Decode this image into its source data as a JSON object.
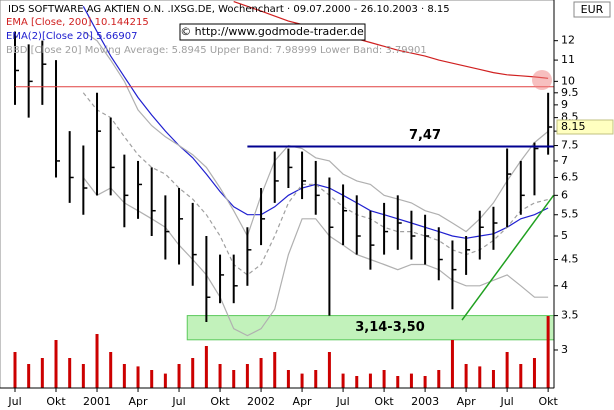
{
  "chart_data": {
    "type": "stock",
    "title": "IDS SOFTWARE AG AKTIEN O.N. .IXSG.DE, Wochenchart · 09.07.2000 - 26.10.2003 · 8.15",
    "copyright": "© http://www.godmode-trader.de",
    "currency": "EUR",
    "log_scale": true,
    "ylim": [
      2.53,
      14.4
    ],
    "yticks": [
      3,
      3.5,
      4,
      4.5,
      5,
      5.5,
      6,
      6.5,
      7,
      7.5,
      8,
      8.5,
      9,
      9.5,
      10,
      11,
      12
    ],
    "last_price": {
      "value": 8.15,
      "label": "8.15"
    },
    "categories": [
      "Jul",
      null,
      null,
      "Okt",
      null,
      null,
      "2001",
      null,
      null,
      "Apr",
      null,
      null,
      "Jul",
      null,
      null,
      "Okt",
      null,
      null,
      "2002",
      null,
      null,
      "Apr",
      null,
      null,
      "Jul",
      null,
      null,
      "Okt",
      null,
      null,
      "2003",
      null,
      null,
      "Apr",
      null,
      null,
      "Jul",
      null,
      null,
      "Okt"
    ],
    "high": [
      12.5,
      11.8,
      12.0,
      11.0,
      8.0,
      7.5,
      9.5,
      8.5,
      7.2,
      7.0,
      6.8,
      6.0,
      6.2,
      5.8,
      5.0,
      4.6,
      4.6,
      5.2,
      6.2,
      7.3,
      7.4,
      7.3,
      7.0,
      6.5,
      6.3,
      6.0,
      5.6,
      5.8,
      6.0,
      5.6,
      5.5,
      5.2,
      4.9,
      5.0,
      5.6,
      5.7,
      7.4,
      7.0,
      7.6,
      9.5
    ],
    "low": [
      9.0,
      8.5,
      9.0,
      6.5,
      5.8,
      5.5,
      6.0,
      6.0,
      5.2,
      5.4,
      5.0,
      4.5,
      4.4,
      4.0,
      3.4,
      3.7,
      3.7,
      4.0,
      4.8,
      5.8,
      6.2,
      5.9,
      5.5,
      3.5,
      4.8,
      4.6,
      4.3,
      4.6,
      4.7,
      4.5,
      4.4,
      4.1,
      3.6,
      4.2,
      4.5,
      4.7,
      5.2,
      5.5,
      6.0,
      7.2
    ],
    "close": [
      10.5,
      10.0,
      10.8,
      7.0,
      6.5,
      6.2,
      8.0,
      6.8,
      6.0,
      6.3,
      5.6,
      5.1,
      5.4,
      4.6,
      3.8,
      4.2,
      4.0,
      4.7,
      5.4,
      6.4,
      6.8,
      6.4,
      6.0,
      5.2,
      5.6,
      5.0,
      4.8,
      5.1,
      5.3,
      5.0,
      5.0,
      4.5,
      4.3,
      4.7,
      5.2,
      5.3,
      6.6,
      6.0,
      7.4,
      8.15
    ],
    "volume": [
      30,
      20,
      25,
      40,
      25,
      20,
      45,
      30,
      20,
      18,
      15,
      12,
      20,
      25,
      35,
      20,
      15,
      20,
      25,
      30,
      15,
      12,
      15,
      30,
      12,
      10,
      12,
      15,
      10,
      12,
      10,
      15,
      40,
      20,
      18,
      15,
      30,
      20,
      25,
      60
    ],
    "series": [
      {
        "name": "EMA [Close, 200] 10.144215",
        "color": "#d02020",
        "dash": false,
        "values": [
          null,
          null,
          null,
          null,
          null,
          null,
          null,
          null,
          null,
          null,
          null,
          null,
          null,
          null,
          null,
          null,
          14.3,
          14.0,
          13.7,
          13.4,
          13.1,
          12.9,
          12.7,
          12.5,
          12.3,
          12.1,
          11.9,
          11.7,
          11.5,
          11.35,
          11.2,
          11.0,
          10.85,
          10.7,
          10.55,
          10.4,
          10.3,
          10.25,
          10.2,
          10.14
        ]
      },
      {
        "name": "EMA(2)[Close 20] 5.66907",
        "color": "#2020d0",
        "dash": false,
        "values": [
          null,
          null,
          null,
          null,
          null,
          14.0,
          12.5,
          11.2,
          10.2,
          9.3,
          8.6,
          8.0,
          7.5,
          7.1,
          6.6,
          6.1,
          5.7,
          5.5,
          5.5,
          5.7,
          6.0,
          6.2,
          6.3,
          6.2,
          6.0,
          5.8,
          5.6,
          5.5,
          5.4,
          5.3,
          5.2,
          5.1,
          5.0,
          4.95,
          5.0,
          5.05,
          5.2,
          5.4,
          5.5,
          5.67
        ]
      },
      {
        "name": "BBD [Close 20] Moving Average: 5.8945 Upper Band: 7.98999 Lower Band: 3.79901",
        "color": "#a0a0a0",
        "dash": true,
        "values": [
          null,
          null,
          null,
          null,
          null,
          9.5,
          8.8,
          8.5,
          7.8,
          7.2,
          6.8,
          6.6,
          6.2,
          5.9,
          5.5,
          5.0,
          4.4,
          4.2,
          4.4,
          5.0,
          5.8,
          6.3,
          6.3,
          6.0,
          5.7,
          5.5,
          5.4,
          5.2,
          5.1,
          5.1,
          5.0,
          4.9,
          4.7,
          4.6,
          4.7,
          4.9,
          5.2,
          5.6,
          5.8,
          5.89
        ],
        "upper": [
          null,
          null,
          null,
          null,
          null,
          12.5,
          12.0,
          11.0,
          10.0,
          8.8,
          8.2,
          7.8,
          7.5,
          7.2,
          6.8,
          6.2,
          5.6,
          5.0,
          6.0,
          7.0,
          7.5,
          7.4,
          7.1,
          7.0,
          6.6,
          6.4,
          6.3,
          6.0,
          5.9,
          5.8,
          5.6,
          5.5,
          5.3,
          5.1,
          5.4,
          5.8,
          6.4,
          7.0,
          7.6,
          7.99
        ],
        "lower": [
          null,
          null,
          null,
          null,
          null,
          6.5,
          6.0,
          6.2,
          5.8,
          5.6,
          5.4,
          5.2,
          4.8,
          4.5,
          4.2,
          3.8,
          3.3,
          3.2,
          3.3,
          3.6,
          4.6,
          5.4,
          5.4,
          5.0,
          4.8,
          4.6,
          4.5,
          4.4,
          4.3,
          4.4,
          4.4,
          4.3,
          4.1,
          4.0,
          4.0,
          4.1,
          4.2,
          4.0,
          3.8,
          3.8
        ]
      }
    ],
    "levels": [
      {
        "value": 7.47,
        "label": "7,47",
        "color": "#000090",
        "from": 17
      },
      {
        "value": 9.76,
        "color": "#e04040",
        "from": 0
      }
    ],
    "zone": {
      "low": 3.14,
      "high": 3.5,
      "label": "3,14-3,50",
      "from": 12.6
    },
    "trendline": {
      "x": [
        32.7,
        39.4
      ],
      "y": [
        3.43,
        6.0
      ],
      "color": "#20a020"
    }
  }
}
